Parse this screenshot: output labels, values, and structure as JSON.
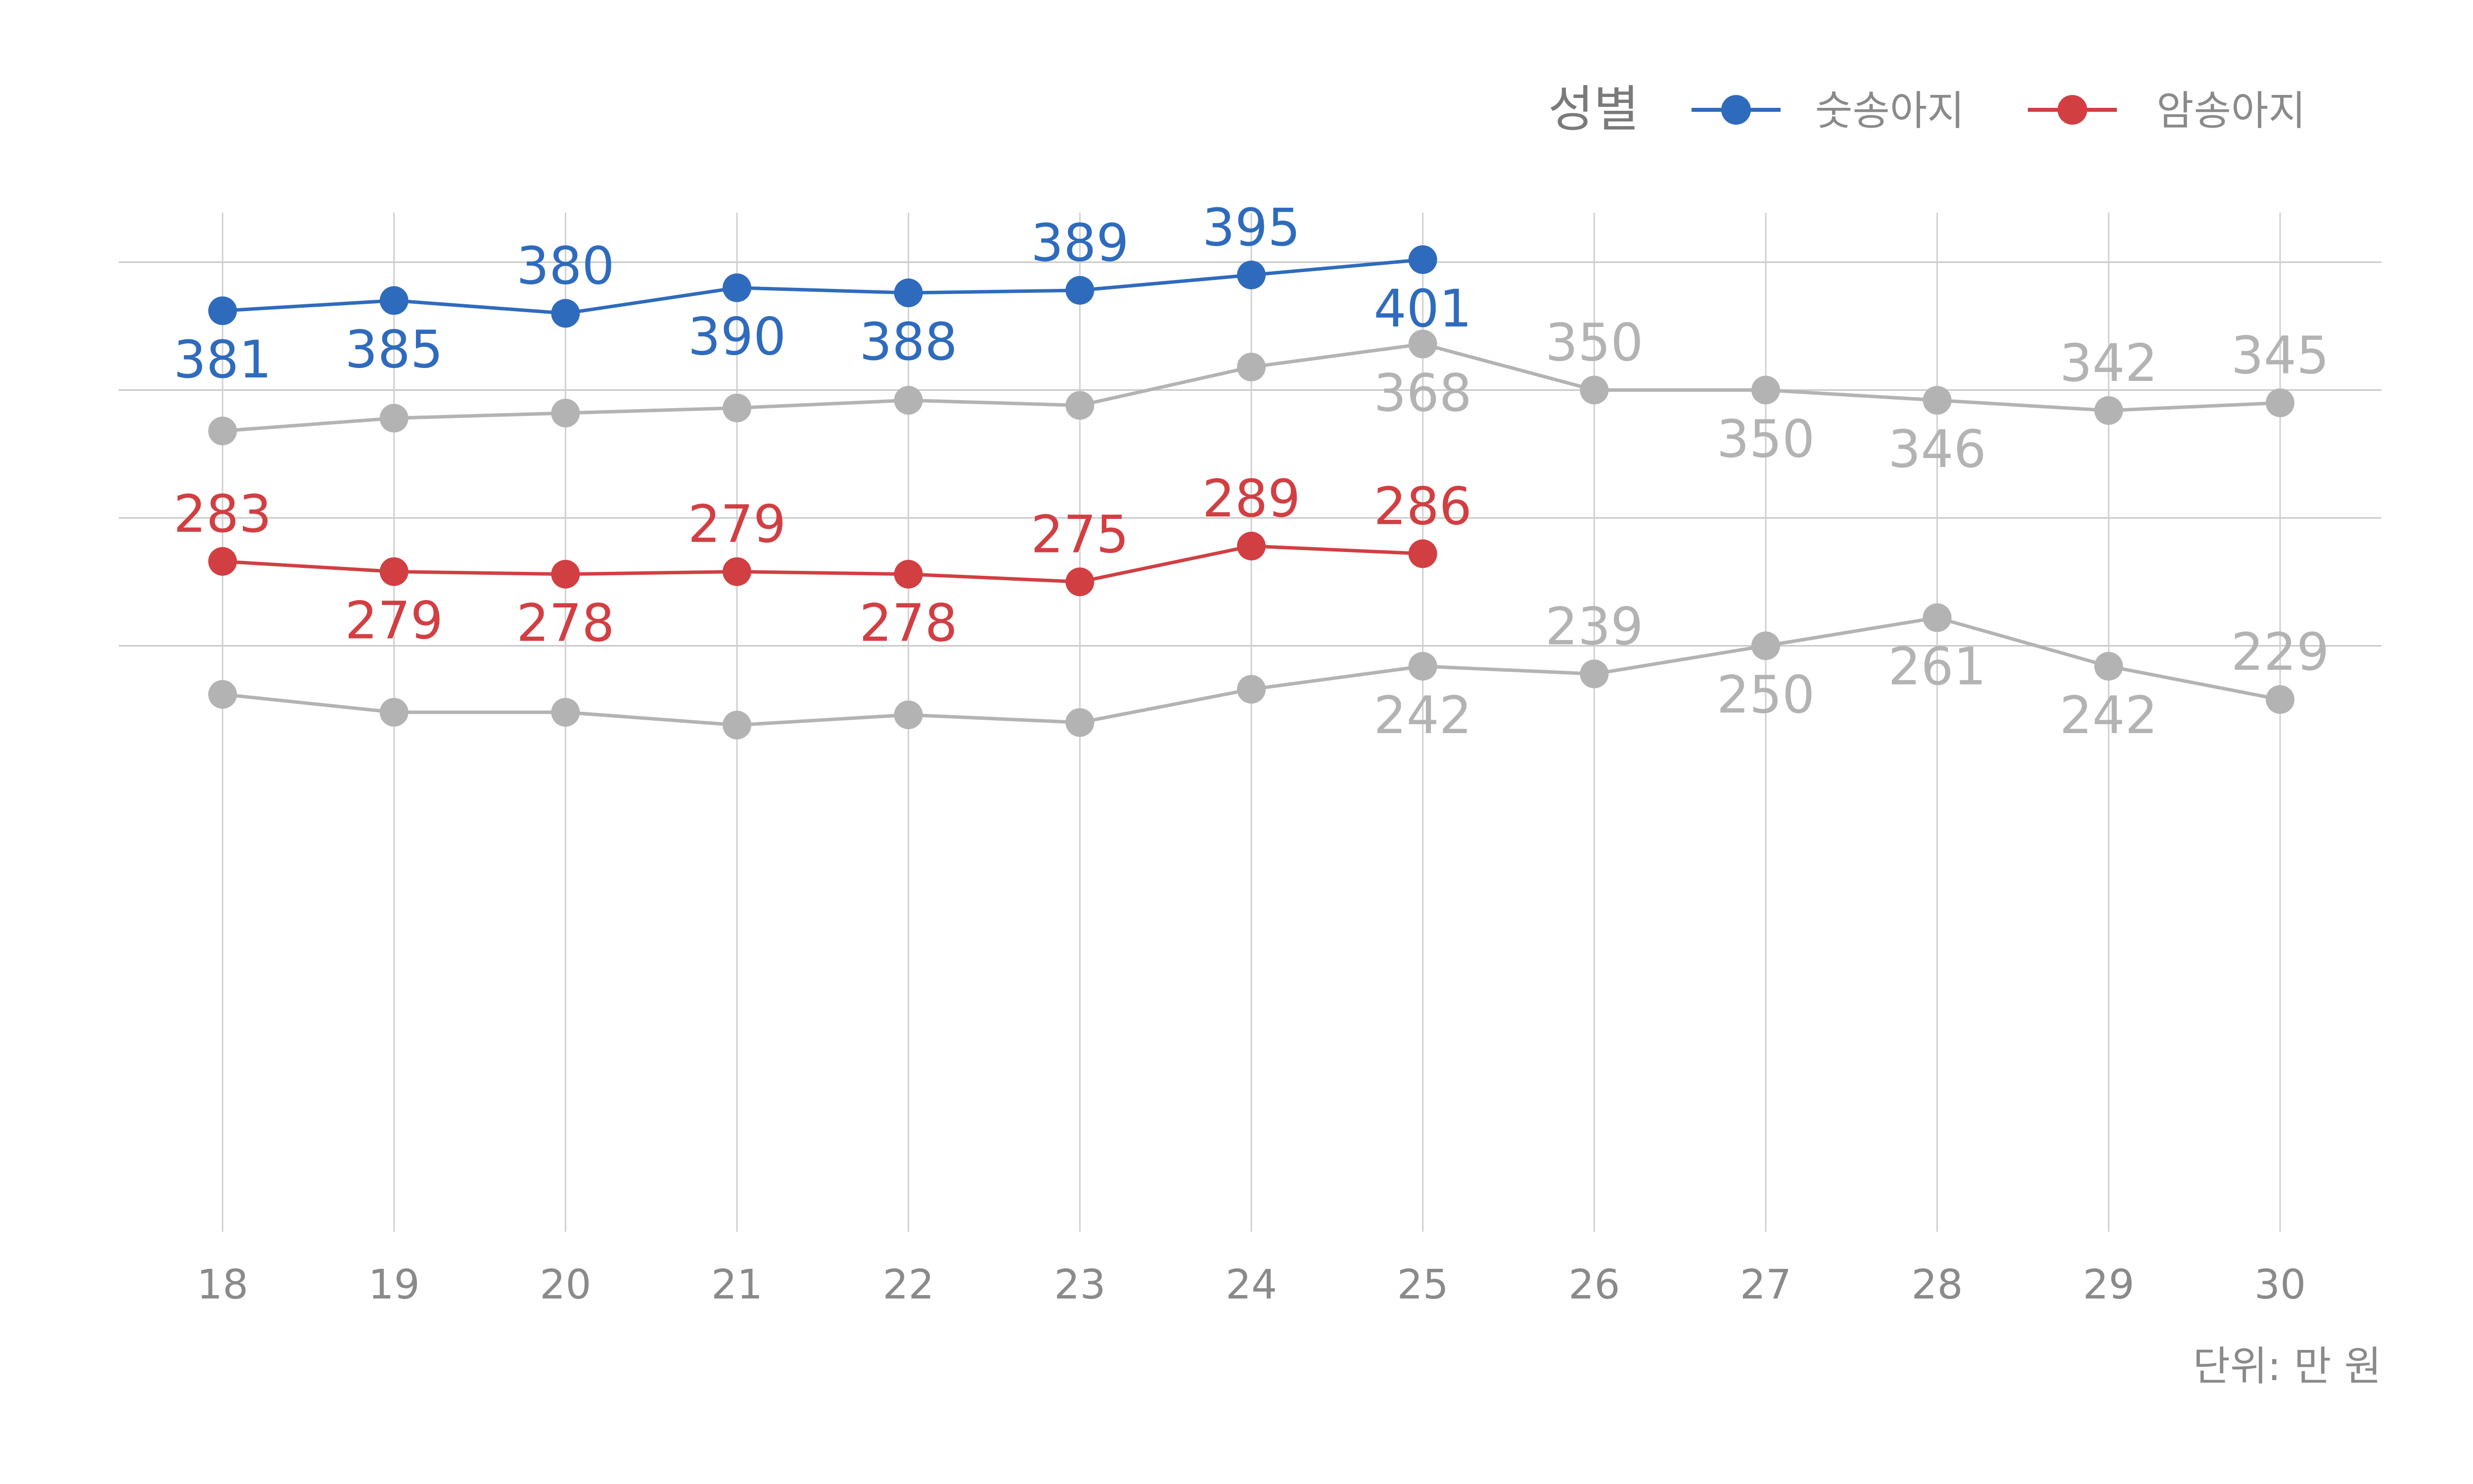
{
  "chart_data": {
    "type": "line",
    "x": [
      18,
      19,
      20,
      21,
      22,
      23,
      24,
      25,
      26,
      27,
      28,
      29,
      30
    ],
    "ylim": [
      200,
      410
    ],
    "grid": true,
    "legend": {
      "title": "성별",
      "position": "top-right",
      "entries": [
        {
          "label": "숫송아지",
          "color": "#2f6bbd"
        },
        {
          "label": "암송아지",
          "color": "#d13f43"
        }
      ]
    },
    "series": [
      {
        "name": "숫송아지",
        "color": "#2f6bbd",
        "x": [
          18,
          19,
          20,
          21,
          22,
          23,
          24,
          25
        ],
        "values": [
          381,
          385,
          380,
          390,
          388,
          389,
          395,
          401
        ],
        "label_pos": [
          "below",
          "below",
          "above",
          "below",
          "below",
          "above",
          "above",
          "below"
        ]
      },
      {
        "name": "암송아지",
        "color": "#d13f43",
        "x": [
          18,
          19,
          20,
          21,
          22,
          23,
          24,
          25
        ],
        "values": [
          283,
          279,
          278,
          279,
          278,
          275,
          289,
          286
        ],
        "label_pos": [
          "above",
          "below",
          "below",
          "above",
          "below",
          "above",
          "above",
          "above"
        ]
      },
      {
        "color": "#b3b3b3",
        "x": [
          18,
          19,
          20,
          21,
          22,
          23,
          24,
          25,
          26,
          27,
          28,
          29,
          30
        ],
        "values": [
          334,
          339,
          341,
          343,
          346,
          344,
          359,
          368,
          350,
          350,
          346,
          342,
          345
        ],
        "labels": [
          null,
          null,
          null,
          null,
          null,
          null,
          null,
          "368",
          "350",
          "350",
          "346",
          "342",
          "345"
        ],
        "label_pos": [
          "below",
          "below",
          "below",
          "below",
          "below",
          "below",
          "below",
          "below",
          "above",
          "below",
          "below",
          "above",
          "above"
        ]
      },
      {
        "color": "#b3b3b3",
        "x": [
          18,
          19,
          20,
          21,
          22,
          23,
          24,
          25,
          26,
          27,
          28,
          29,
          30
        ],
        "values": [
          231,
          224,
          224,
          219,
          223,
          220,
          233,
          242,
          239,
          250,
          261,
          242,
          229
        ],
        "labels": [
          null,
          null,
          null,
          null,
          null,
          null,
          null,
          "242",
          "239",
          "250",
          "261",
          "242",
          "229"
        ],
        "label_pos": [
          "below",
          "below",
          "below",
          "below",
          "below",
          "below",
          "below",
          "below",
          "above",
          "below",
          "below",
          "below",
          "above"
        ]
      }
    ],
    "caption": "단위: 만 원"
  }
}
